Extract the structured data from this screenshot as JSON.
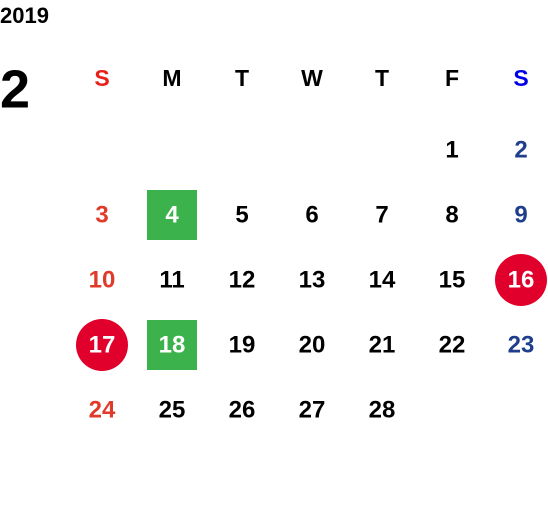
{
  "year": "2019",
  "month": "2",
  "weekdays": [
    "S",
    "M",
    "T",
    "W",
    "T",
    "F",
    "S"
  ],
  "weeks": [
    [
      null,
      null,
      null,
      null,
      null,
      1,
      2
    ],
    [
      3,
      {
        "value": 4,
        "highlight": "#3bb24b",
        "shape": "square"
      },
      5,
      6,
      7,
      8,
      9
    ],
    [
      10,
      11,
      12,
      13,
      14,
      15,
      {
        "value": 16,
        "highlight": "#e0002b",
        "shape": "circle"
      }
    ],
    [
      {
        "value": 17,
        "highlight": "#e0002b",
        "shape": "circle"
      },
      {
        "value": 18,
        "highlight": "#3bb24b",
        "shape": "square"
      },
      19,
      20,
      21,
      22,
      23
    ],
    [
      24,
      25,
      26,
      27,
      28,
      null,
      null
    ]
  ]
}
